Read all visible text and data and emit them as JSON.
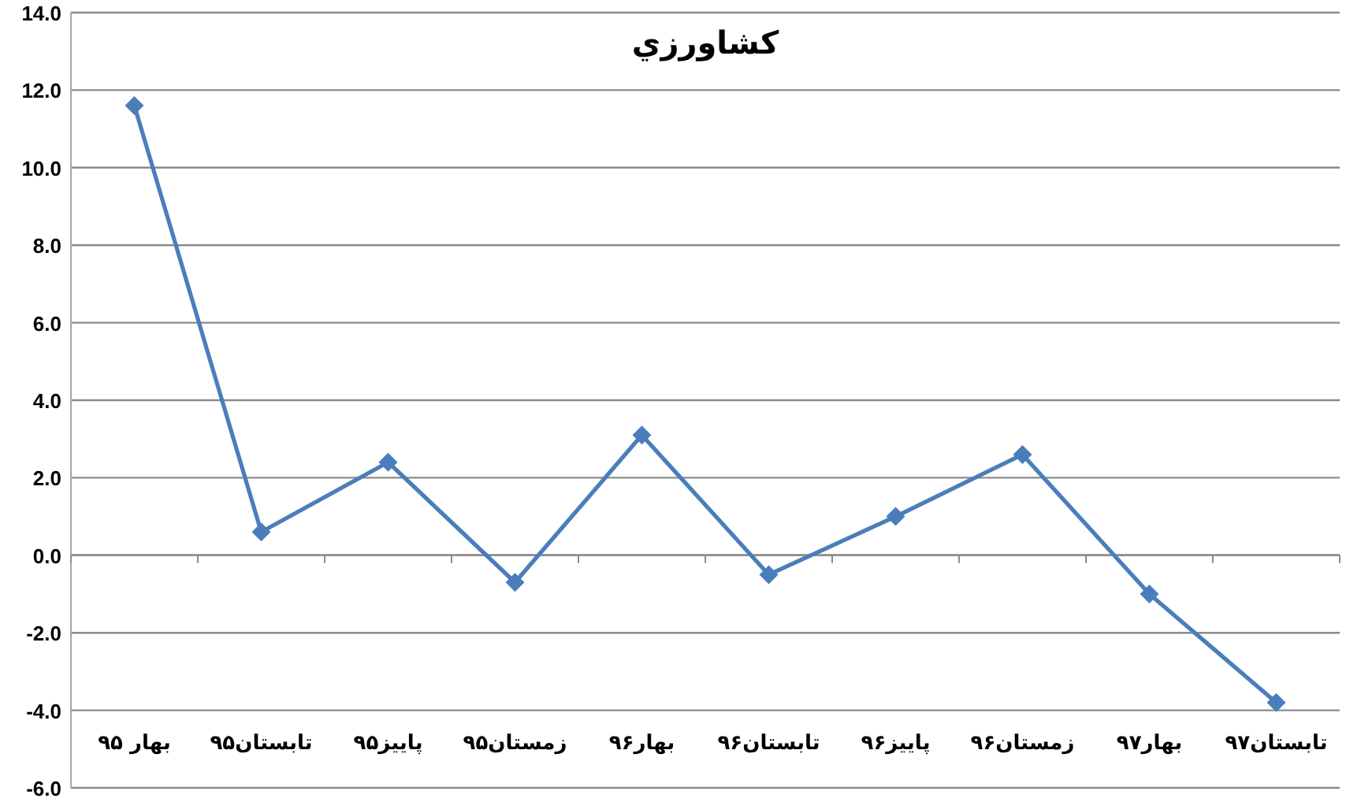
{
  "chart_data": {
    "type": "line",
    "title": "كشاورزي",
    "categories": [
      "بهار ۹۵",
      "تابستان۹۵",
      "پاییز۹۵",
      "زمستان۹۵",
      "بهار۹۶",
      "تابستان۹۶",
      "پاییز۹۶",
      "زمستان۹۶",
      "بهار۹۷",
      "تابستان۹۷"
    ],
    "series": [
      {
        "color": "#4a7ebb",
        "values": [
          11.6,
          0.6,
          2.4,
          -0.7,
          3.1,
          -0.5,
          1.0,
          2.6,
          -1.0,
          -3.8
        ]
      }
    ],
    "ylim": [
      -6,
      14
    ],
    "yticks": [
      {
        "value": -6,
        "label": "-6.0"
      },
      {
        "value": -4,
        "label": "-4.0"
      },
      {
        "value": -2,
        "label": "-2.0"
      },
      {
        "value": 0,
        "label": "0.0"
      },
      {
        "value": 2,
        "label": "2.0"
      },
      {
        "value": 4,
        "label": "4.0"
      },
      {
        "value": 6,
        "label": "6.0"
      },
      {
        "value": 8,
        "label": "8.0"
      },
      {
        "value": 10,
        "label": "10.0"
      },
      {
        "value": 12,
        "label": "12.0"
      },
      {
        "value": 14,
        "label": "14.0"
      }
    ],
    "grid": "y",
    "marker": "diamond",
    "line_style": "solid"
  }
}
